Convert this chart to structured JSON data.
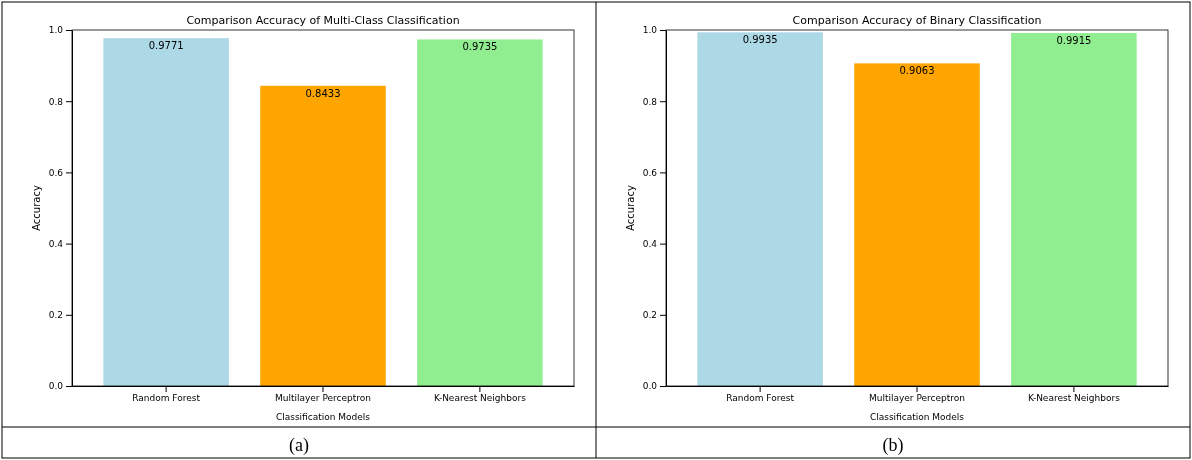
{
  "chart_data": [
    {
      "type": "bar",
      "title": "Comparison Accuracy of Multi-Class Classification",
      "xlabel": "Classification Models",
      "ylabel": "Accuracy",
      "categories": [
        "Random Forest",
        "Multilayer Perceptron",
        "K-Nearest Neighbors"
      ],
      "values": [
        0.9771,
        0.8433,
        0.9735
      ],
      "colors": [
        "#add8e6",
        "#ffa500",
        "#90ee90"
      ],
      "ylim": [
        0,
        1
      ],
      "yticks": [
        {
          "value": 0,
          "label": "0.0"
        },
        {
          "value": 0.2,
          "label": "0.2"
        },
        {
          "value": 0.4,
          "label": "0.4"
        },
        {
          "value": 0.6,
          "label": "0.6"
        },
        {
          "value": 0.8,
          "label": "0.8"
        },
        {
          "value": 1,
          "label": "1.0"
        }
      ],
      "data_labels": true,
      "annotations": [
        "(a)"
      ]
    },
    {
      "type": "bar",
      "title": "Comparison Accuracy of Binary Classification",
      "xlabel": "Classification Models",
      "ylabel": "Accuracy",
      "categories": [
        "Random Forest",
        "Multilayer Perceptron",
        "K-Nearest Neighbors"
      ],
      "values": [
        0.9935,
        0.9063,
        0.9915
      ],
      "colors": [
        "#add8e6",
        "#ffa500",
        "#90ee90"
      ],
      "ylim": [
        0,
        1
      ],
      "yticks": [
        {
          "value": 0,
          "label": "0.0"
        },
        {
          "value": 0.2,
          "label": "0.2"
        },
        {
          "value": 0.4,
          "label": "0.4"
        },
        {
          "value": 0.6,
          "label": "0.6"
        },
        {
          "value": 0.8,
          "label": "0.8"
        },
        {
          "value": 1,
          "label": "1.0"
        }
      ],
      "data_labels": true,
      "annotations": [
        "(b)"
      ]
    }
  ]
}
